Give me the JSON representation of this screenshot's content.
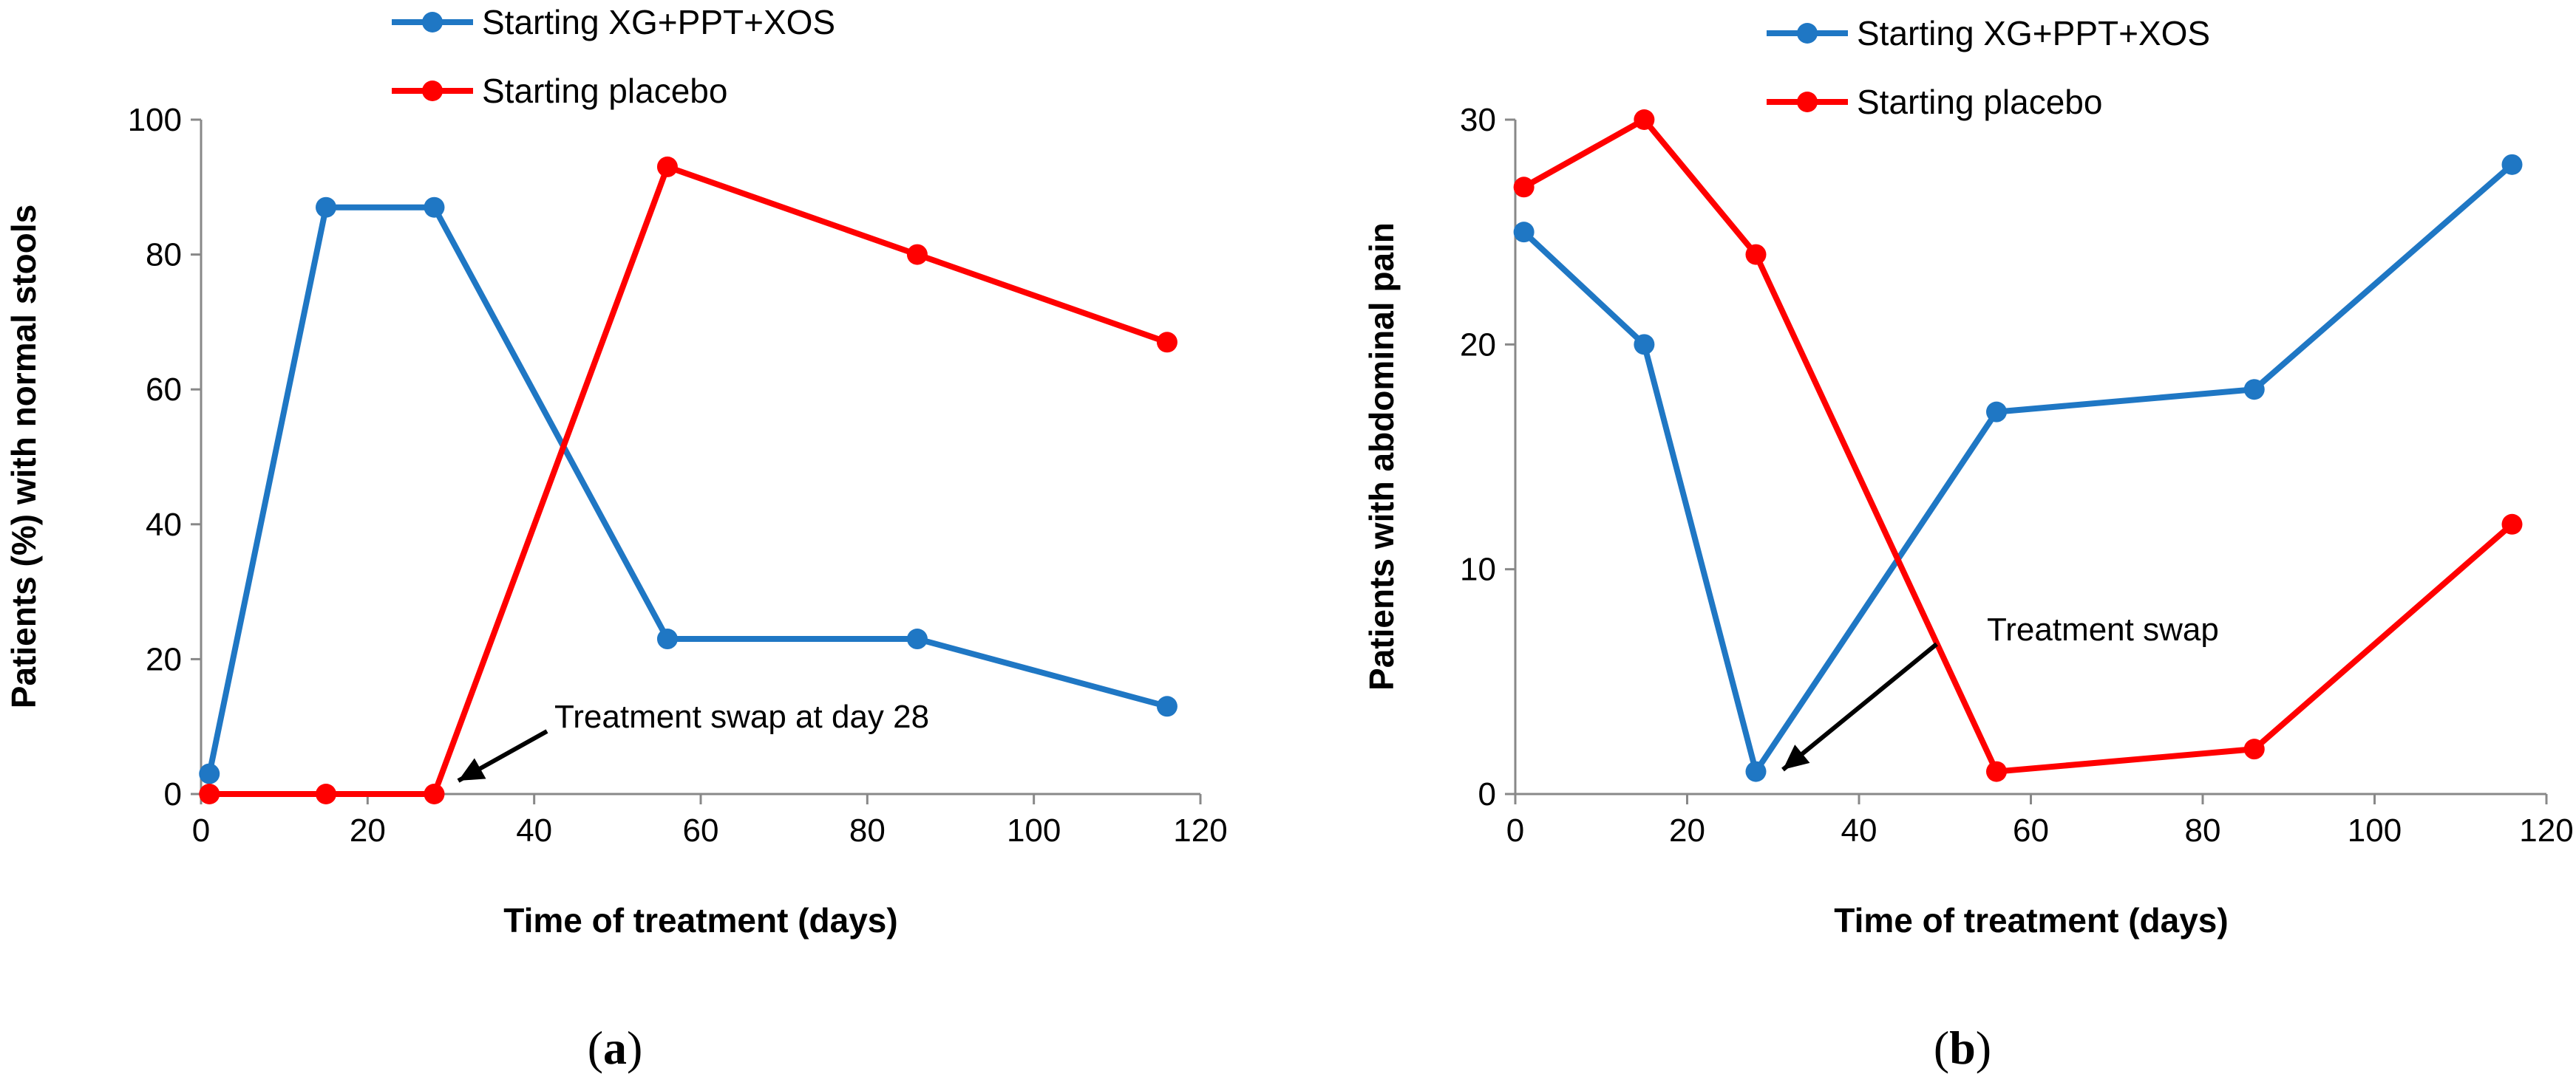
{
  "chart_data": [
    {
      "type": "line",
      "panel_label": "a",
      "xlabel": "Time of treatment (days)",
      "ylabel": "Patients (%) with normal stools",
      "xlim": [
        0,
        120
      ],
      "ylim": [
        0,
        100
      ],
      "xticks": [
        0,
        20,
        40,
        60,
        80,
        100,
        120
      ],
      "yticks": [
        0,
        20,
        40,
        60,
        80,
        100
      ],
      "legend_position": "top-center",
      "series": [
        {
          "name": "Starting XG+PPT+XOS",
          "color": "#1f77c4",
          "x": [
            1,
            15,
            28,
            56,
            86,
            116
          ],
          "y": [
            3,
            87,
            87,
            23,
            23,
            13
          ]
        },
        {
          "name": "Starting placebo",
          "color": "#ff0000",
          "x": [
            1,
            15,
            28,
            56,
            86,
            116
          ],
          "y": [
            0,
            0,
            0,
            93,
            80,
            67
          ]
        }
      ],
      "annotation": {
        "text": "Treatment swap at day 28",
        "x": 28,
        "y": 0
      }
    },
    {
      "type": "line",
      "panel_label": "b",
      "xlabel": "Time of treatment (days)",
      "ylabel": "Patients with abdominal  pain",
      "xlim": [
        0,
        120
      ],
      "ylim": [
        0,
        30
      ],
      "xticks": [
        0,
        20,
        40,
        60,
        80,
        100,
        120
      ],
      "yticks": [
        0,
        10,
        20,
        30
      ],
      "legend_position": "top-center",
      "series": [
        {
          "name": "Starting XG+PPT+XOS",
          "color": "#1f77c4",
          "x": [
            1,
            15,
            28,
            56,
            86,
            116
          ],
          "y": [
            25,
            20,
            1,
            17,
            18,
            28
          ]
        },
        {
          "name": "Starting placebo",
          "color": "#ff0000",
          "x": [
            1,
            15,
            28,
            56,
            86,
            116
          ],
          "y": [
            27,
            30,
            24,
            1,
            2,
            12
          ]
        }
      ],
      "annotation": {
        "text": "Treatment swap",
        "x": 28,
        "y": 1
      }
    }
  ]
}
